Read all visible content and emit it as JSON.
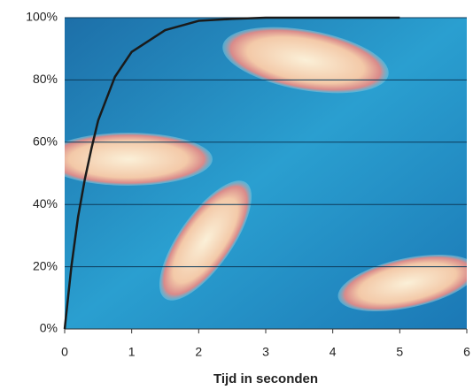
{
  "chart_data": {
    "type": "line",
    "x_label": "Tijd in seconden",
    "x": [
      0,
      0.1,
      0.2,
      0.3,
      0.4,
      0.5,
      0.75,
      1,
      1.5,
      2,
      2.5,
      3,
      4,
      5
    ],
    "values": [
      0,
      20,
      36,
      48,
      58,
      67,
      81,
      89,
      96,
      99,
      99.6,
      100,
      100,
      100
    ],
    "color": "#1a1a1a",
    "xlim": [
      0,
      6
    ],
    "xticks": [
      0,
      1,
      2,
      3,
      4,
      5,
      6
    ],
    "ylim": [
      0,
      100
    ],
    "yticks": [
      {
        "value": 0,
        "label": "0%"
      },
      {
        "value": 20,
        "label": "20%"
      },
      {
        "value": 40,
        "label": "40%"
      },
      {
        "value": 60,
        "label": "60%"
      },
      {
        "value": 80,
        "label": "80%"
      },
      {
        "value": 100,
        "label": "100%"
      }
    ],
    "grid": true
  }
}
